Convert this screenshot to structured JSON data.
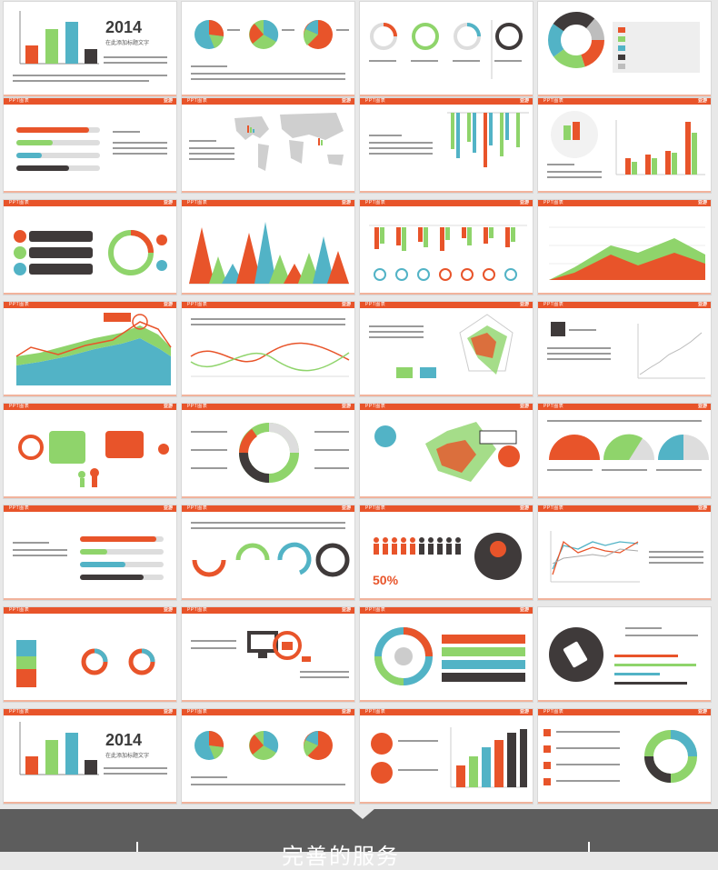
{
  "slide_header": "PPT图表",
  "logo": "亚游",
  "year": "2014",
  "year_sub": "在此添加标题文字",
  "percent": "50%",
  "footer_title": "完善的服务",
  "colors": {
    "orange": "#e8542a",
    "green": "#8fd46b",
    "teal": "#52b3c6",
    "dark": "#3f3a3a",
    "gray": "#bdbdbd"
  }
}
